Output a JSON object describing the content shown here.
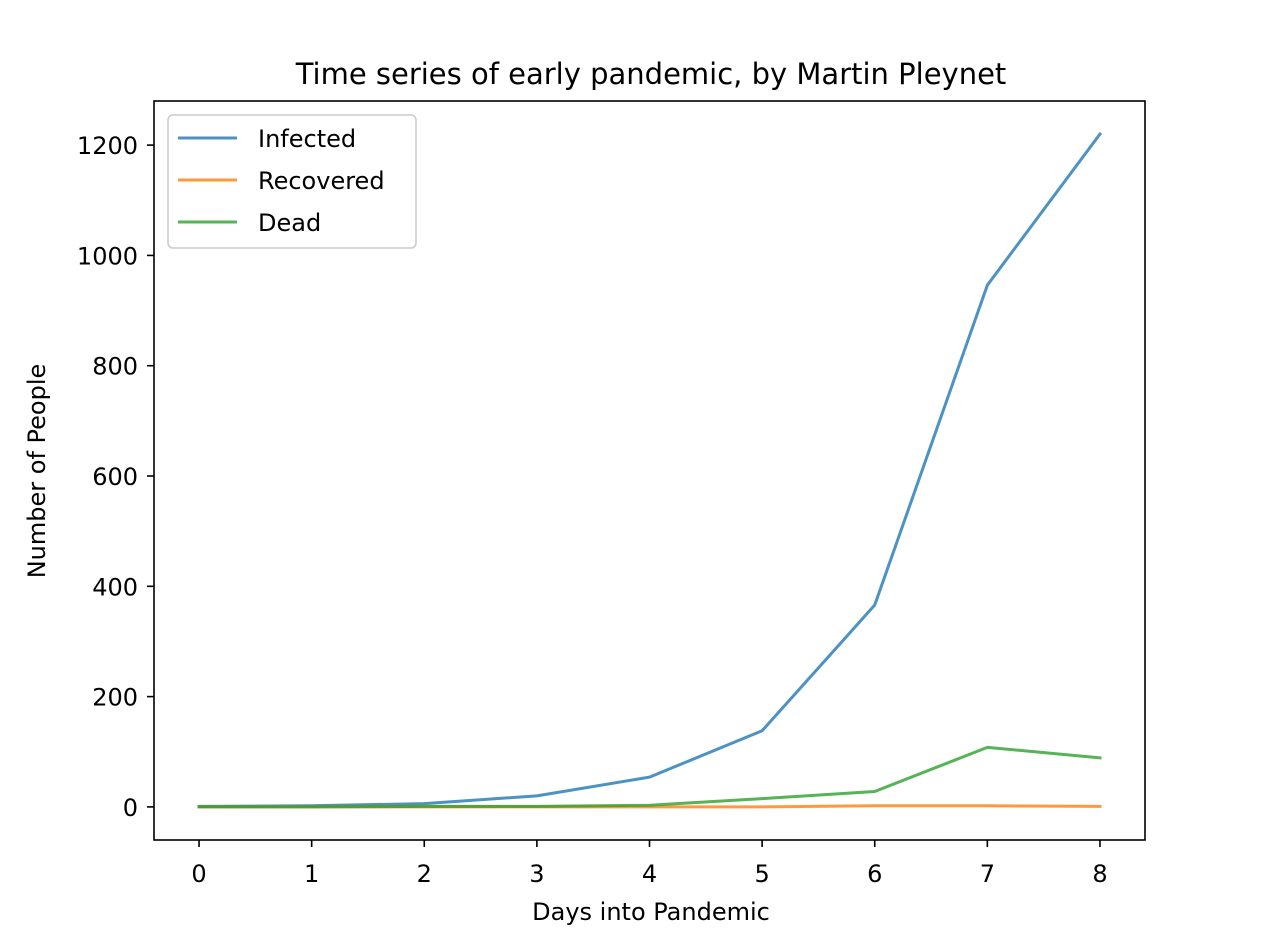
{
  "chart_data": {
    "type": "line",
    "title": "Time series of early pandemic, by Martin Pleynet",
    "xlabel": "Days into Pandemic",
    "ylabel": "Number of People",
    "x": [
      0,
      1,
      2,
      3,
      4,
      5,
      6,
      7,
      8
    ],
    "xlim": [
      -0.4,
      8.4
    ],
    "ylim": [
      -60,
      1280
    ],
    "xticks": [
      0,
      1,
      2,
      3,
      4,
      5,
      6,
      7,
      8
    ],
    "yticks": [
      0,
      200,
      400,
      600,
      800,
      1000,
      1200
    ],
    "grid": false,
    "legend_position": "upper left",
    "series": [
      {
        "name": "Infected",
        "color": "#1f77b4",
        "values": [
          1,
          2,
          6,
          20,
          54,
          138,
          366,
          946,
          1220
        ]
      },
      {
        "name": "Recovered",
        "color": "#ff7f0e",
        "values": [
          0,
          0,
          0,
          0,
          0,
          0,
          2,
          2,
          1
        ]
      },
      {
        "name": "Dead",
        "color": "#2ca02c",
        "values": [
          0,
          0,
          1,
          1,
          3,
          15,
          28,
          108,
          89
        ]
      }
    ]
  }
}
